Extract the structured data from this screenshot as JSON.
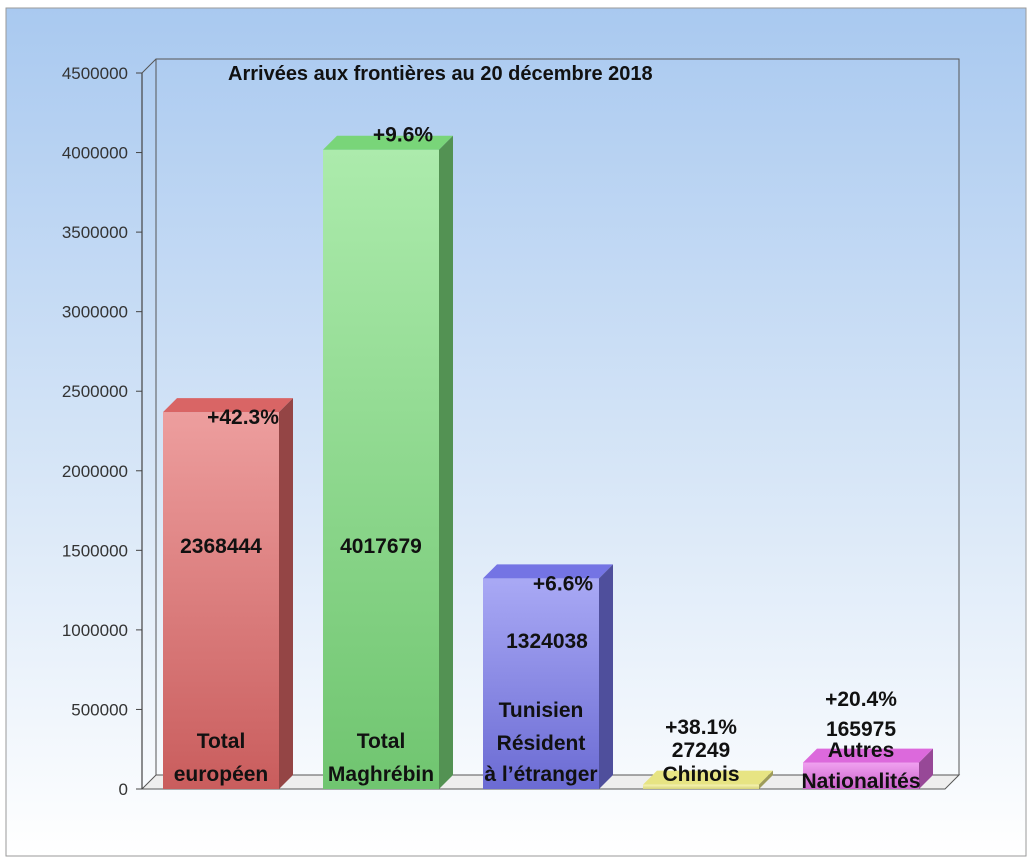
{
  "chart_data": {
    "type": "bar",
    "title": "Arrivées aux frontières au 20 décembre 2018",
    "xlabel": "",
    "ylabel": "",
    "ylim": [
      0,
      4500000
    ],
    "yticks": [
      0,
      500000,
      1000000,
      1500000,
      2000000,
      2500000,
      3000000,
      3500000,
      4000000,
      4500000
    ],
    "grid": false,
    "categories": [
      [
        "Total",
        "européen"
      ],
      [
        "Total",
        "Maghrébin"
      ],
      [
        "Tunisien",
        "Résident",
        "à l’étranger"
      ],
      [
        "Chinois"
      ],
      [
        "Autres",
        "Nationalités"
      ]
    ],
    "values": [
      2368444,
      4017679,
      1324038,
      27249,
      165975
    ],
    "value_labels": [
      "2368444",
      "4017679",
      "1324038",
      "27249",
      "165975"
    ],
    "changes": [
      "+42.3%",
      "+9.6%",
      "+6.6%",
      "+38.1%",
      "+20.4%"
    ],
    "colors": [
      "#e46a6a",
      "#7fe07f",
      "#7a7af0",
      "#f3f08a",
      "#e86ee8"
    ]
  },
  "colors": {
    "background_top": "#a9c9f0",
    "background_bottom": "#ffffff"
  }
}
